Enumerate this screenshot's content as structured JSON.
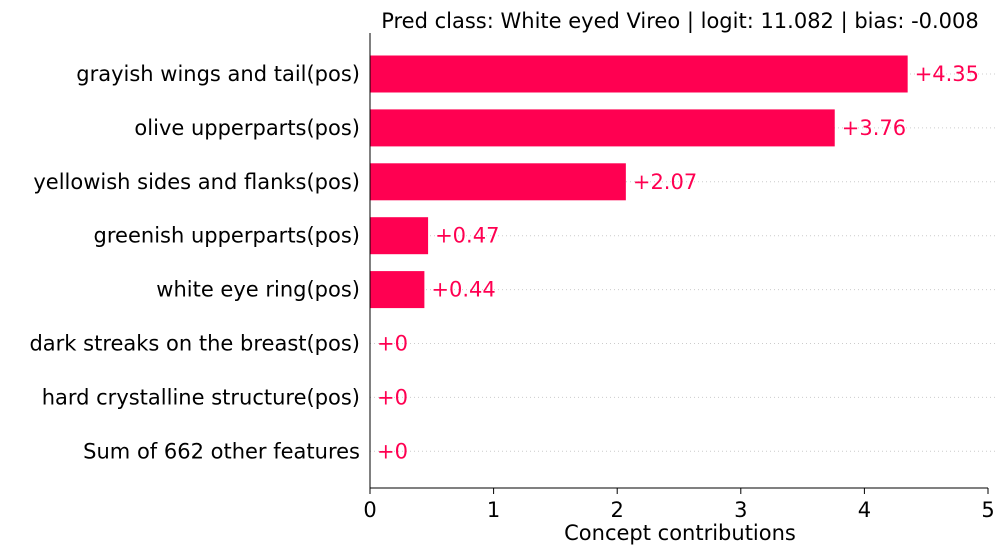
{
  "chart_data": {
    "type": "bar",
    "orientation": "horizontal",
    "title": "Pred class: White eyed Vireo | logit: 11.082 | bias: -0.008",
    "xlabel": "Concept contributions",
    "ylabel": "",
    "xlim": [
      0,
      5
    ],
    "x_ticks": [
      0,
      1,
      2,
      3,
      4,
      5
    ],
    "grid": "dotted horizontal lines per category",
    "categories": [
      "grayish wings and tail(pos)",
      "olive upperparts(pos)",
      "yellowish sides and flanks(pos)",
      "greenish upperparts(pos)",
      "white eye ring(pos)",
      "dark streaks on the breast(pos)",
      "hard crystalline structure(pos)",
      "Sum of 662 other features"
    ],
    "values": [
      4.35,
      3.76,
      2.07,
      0.47,
      0.44,
      0,
      0,
      0
    ],
    "value_labels": [
      "+4.35",
      "+3.76",
      "+2.07",
      "+0.47",
      "+0.44",
      "+0",
      "+0",
      "+0"
    ],
    "colors": {
      "positive": "#FF0051",
      "grid": "#CCCCCC",
      "axis": "#000000",
      "text": "#000000"
    }
  }
}
